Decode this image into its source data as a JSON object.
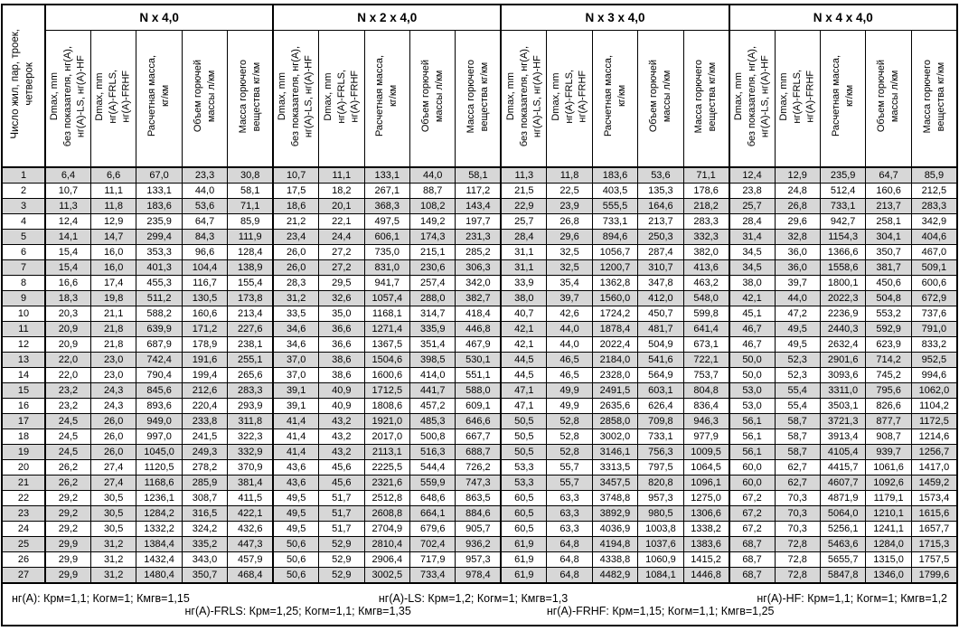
{
  "table": {
    "corner_header_lines": [
      "Число жил, пар, троек,",
      "четверок"
    ],
    "groups": [
      {
        "label": "N x 4,0"
      },
      {
        "label": "N x 2 x 4,0"
      },
      {
        "label": "N x 3 x 4,0"
      },
      {
        "label": "N x 4 x 4,0"
      }
    ],
    "subheaders": [
      {
        "key": "dmax-base",
        "lines": [
          "Dmax, mm",
          "без показателя, нг(А),",
          "нг(А)-LS, нг(А)-HF"
        ]
      },
      {
        "key": "dmax-fr",
        "lines": [
          "Dmax, mm",
          "нг(А)-FRLS,",
          "нг(А)-FRHF"
        ]
      },
      {
        "key": "calc-mass",
        "lines": [
          "Расчетная масса,",
          "кг/км"
        ]
      },
      {
        "key": "combustible-volume",
        "lines": [
          "Объем горючей",
          "массы л/км"
        ]
      },
      {
        "key": "combustible-mass",
        "lines": [
          "Масса горючего",
          "вещества кг/км"
        ]
      }
    ],
    "rows": [
      {
        "n": "1",
        "values": [
          "6,4",
          "6,6",
          "67,0",
          "23,3",
          "30,8",
          "10,7",
          "11,1",
          "133,1",
          "44,0",
          "58,1",
          "11,3",
          "11,8",
          "183,6",
          "53,6",
          "71,1",
          "12,4",
          "12,9",
          "235,9",
          "64,7",
          "85,9"
        ]
      },
      {
        "n": "2",
        "values": [
          "10,7",
          "11,1",
          "133,1",
          "44,0",
          "58,1",
          "17,5",
          "18,2",
          "267,1",
          "88,7",
          "117,2",
          "21,5",
          "22,5",
          "403,5",
          "135,3",
          "178,6",
          "23,8",
          "24,8",
          "512,4",
          "160,6",
          "212,5"
        ]
      },
      {
        "n": "3",
        "values": [
          "11,3",
          "11,8",
          "183,6",
          "53,6",
          "71,1",
          "18,6",
          "20,1",
          "368,3",
          "108,2",
          "143,4",
          "22,9",
          "23,9",
          "555,5",
          "164,6",
          "218,2",
          "25,7",
          "26,8",
          "733,1",
          "213,7",
          "283,3"
        ]
      },
      {
        "n": "4",
        "values": [
          "12,4",
          "12,9",
          "235,9",
          "64,7",
          "85,9",
          "21,2",
          "22,1",
          "497,5",
          "149,2",
          "197,7",
          "25,7",
          "26,8",
          "733,1",
          "213,7",
          "283,3",
          "28,4",
          "29,6",
          "942,7",
          "258,1",
          "342,9"
        ]
      },
      {
        "n": "5",
        "values": [
          "14,1",
          "14,7",
          "299,4",
          "84,3",
          "111,9",
          "23,4",
          "24,4",
          "606,1",
          "174,3",
          "231,3",
          "28,4",
          "29,6",
          "894,6",
          "250,3",
          "332,3",
          "31,4",
          "32,8",
          "1154,3",
          "304,1",
          "404,6"
        ]
      },
      {
        "n": "6",
        "values": [
          "15,4",
          "16,0",
          "353,3",
          "96,6",
          "128,4",
          "26,0",
          "27,2",
          "735,0",
          "215,1",
          "285,2",
          "31,1",
          "32,5",
          "1056,7",
          "287,4",
          "382,0",
          "34,5",
          "36,0",
          "1366,6",
          "350,7",
          "467,0"
        ]
      },
      {
        "n": "7",
        "values": [
          "15,4",
          "16,0",
          "401,3",
          "104,4",
          "138,9",
          "26,0",
          "27,2",
          "831,0",
          "230,6",
          "306,3",
          "31,1",
          "32,5",
          "1200,7",
          "310,7",
          "413,6",
          "34,5",
          "36,0",
          "1558,6",
          "381,7",
          "509,1"
        ]
      },
      {
        "n": "8",
        "values": [
          "16,6",
          "17,4",
          "455,3",
          "116,7",
          "155,4",
          "28,3",
          "29,5",
          "941,7",
          "257,4",
          "342,0",
          "33,9",
          "35,4",
          "1362,8",
          "347,8",
          "463,2",
          "38,0",
          "39,7",
          "1800,1",
          "450,6",
          "600,6"
        ]
      },
      {
        "n": "9",
        "values": [
          "18,3",
          "19,8",
          "511,2",
          "130,5",
          "173,8",
          "31,2",
          "32,6",
          "1057,4",
          "288,0",
          "382,7",
          "38,0",
          "39,7",
          "1560,0",
          "412,0",
          "548,0",
          "42,1",
          "44,0",
          "2022,3",
          "504,8",
          "672,9"
        ]
      },
      {
        "n": "10",
        "values": [
          "20,3",
          "21,1",
          "588,2",
          "160,6",
          "213,4",
          "33,5",
          "35,0",
          "1168,1",
          "314,7",
          "418,4",
          "40,7",
          "42,6",
          "1724,2",
          "450,7",
          "599,8",
          "45,1",
          "47,2",
          "2236,9",
          "553,2",
          "737,6"
        ]
      },
      {
        "n": "11",
        "values": [
          "20,9",
          "21,8",
          "639,9",
          "171,2",
          "227,6",
          "34,6",
          "36,6",
          "1271,4",
          "335,9",
          "446,8",
          "42,1",
          "44,0",
          "1878,4",
          "481,7",
          "641,4",
          "46,7",
          "49,5",
          "2440,3",
          "592,9",
          "791,0"
        ]
      },
      {
        "n": "12",
        "values": [
          "20,9",
          "21,8",
          "687,9",
          "178,9",
          "238,1",
          "34,6",
          "36,6",
          "1367,5",
          "351,4",
          "467,9",
          "42,1",
          "44,0",
          "2022,4",
          "504,9",
          "673,1",
          "46,7",
          "49,5",
          "2632,4",
          "623,9",
          "833,2"
        ]
      },
      {
        "n": "13",
        "values": [
          "22,0",
          "23,0",
          "742,4",
          "191,6",
          "255,1",
          "37,0",
          "38,6",
          "1504,6",
          "398,5",
          "530,1",
          "44,5",
          "46,5",
          "2184,0",
          "541,6",
          "722,1",
          "50,0",
          "52,3",
          "2901,6",
          "714,2",
          "952,5"
        ]
      },
      {
        "n": "14",
        "values": [
          "22,0",
          "23,0",
          "790,4",
          "199,4",
          "265,6",
          "37,0",
          "38,6",
          "1600,6",
          "414,0",
          "551,1",
          "44,5",
          "46,5",
          "2328,0",
          "564,9",
          "753,7",
          "50,0",
          "52,3",
          "3093,6",
          "745,2",
          "994,6"
        ]
      },
      {
        "n": "15",
        "values": [
          "23,2",
          "24,3",
          "845,6",
          "212,6",
          "283,3",
          "39,1",
          "40,9",
          "1712,5",
          "441,7",
          "588,0",
          "47,1",
          "49,9",
          "2491,5",
          "603,1",
          "804,8",
          "53,0",
          "55,4",
          "3311,0",
          "795,6",
          "1062,0"
        ]
      },
      {
        "n": "16",
        "values": [
          "23,2",
          "24,3",
          "893,6",
          "220,4",
          "293,9",
          "39,1",
          "40,9",
          "1808,6",
          "457,2",
          "609,1",
          "47,1",
          "49,9",
          "2635,6",
          "626,4",
          "836,4",
          "53,0",
          "55,4",
          "3503,1",
          "826,6",
          "1104,2"
        ]
      },
      {
        "n": "17",
        "values": [
          "24,5",
          "26,0",
          "949,0",
          "233,8",
          "311,8",
          "41,4",
          "43,2",
          "1921,0",
          "485,3",
          "646,6",
          "50,5",
          "52,8",
          "2858,0",
          "709,8",
          "946,3",
          "56,1",
          "58,7",
          "3721,3",
          "877,7",
          "1172,5"
        ]
      },
      {
        "n": "18",
        "values": [
          "24,5",
          "26,0",
          "997,0",
          "241,5",
          "322,3",
          "41,4",
          "43,2",
          "2017,0",
          "500,8",
          "667,7",
          "50,5",
          "52,8",
          "3002,0",
          "733,1",
          "977,9",
          "56,1",
          "58,7",
          "3913,4",
          "908,7",
          "1214,6"
        ]
      },
      {
        "n": "19",
        "values": [
          "24,5",
          "26,0",
          "1045,0",
          "249,3",
          "332,9",
          "41,4",
          "43,2",
          "2113,1",
          "516,3",
          "688,7",
          "50,5",
          "52,8",
          "3146,1",
          "756,3",
          "1009,5",
          "56,1",
          "58,7",
          "4105,4",
          "939,7",
          "1256,7"
        ]
      },
      {
        "n": "20",
        "values": [
          "26,2",
          "27,4",
          "1120,5",
          "278,2",
          "370,9",
          "43,6",
          "45,6",
          "2225,5",
          "544,4",
          "726,2",
          "53,3",
          "55,7",
          "3313,5",
          "797,5",
          "1064,5",
          "60,0",
          "62,7",
          "4415,7",
          "1061,6",
          "1417,0"
        ]
      },
      {
        "n": "21",
        "values": [
          "26,2",
          "27,4",
          "1168,6",
          "285,9",
          "381,4",
          "43,6",
          "45,6",
          "2321,6",
          "559,9",
          "747,3",
          "53,3",
          "55,7",
          "3457,5",
          "820,8",
          "1096,1",
          "60,0",
          "62,7",
          "4607,7",
          "1092,6",
          "1459,2"
        ]
      },
      {
        "n": "22",
        "values": [
          "29,2",
          "30,5",
          "1236,1",
          "308,7",
          "411,5",
          "49,5",
          "51,7",
          "2512,8",
          "648,6",
          "863,5",
          "60,5",
          "63,3",
          "3748,8",
          "957,3",
          "1275,0",
          "67,2",
          "70,3",
          "4871,9",
          "1179,1",
          "1573,4"
        ]
      },
      {
        "n": "23",
        "values": [
          "29,2",
          "30,5",
          "1284,2",
          "316,5",
          "422,1",
          "49,5",
          "51,7",
          "2608,8",
          "664,1",
          "884,6",
          "60,5",
          "63,3",
          "3892,9",
          "980,5",
          "1306,6",
          "67,2",
          "70,3",
          "5064,0",
          "1210,1",
          "1615,6"
        ]
      },
      {
        "n": "24",
        "values": [
          "29,2",
          "30,5",
          "1332,2",
          "324,2",
          "432,6",
          "49,5",
          "51,7",
          "2704,9",
          "679,6",
          "905,7",
          "60,5",
          "63,3",
          "4036,9",
          "1003,8",
          "1338,2",
          "67,2",
          "70,3",
          "5256,1",
          "1241,1",
          "1657,7"
        ]
      },
      {
        "n": "25",
        "values": [
          "29,9",
          "31,2",
          "1384,4",
          "335,2",
          "447,3",
          "50,6",
          "52,9",
          "2810,4",
          "702,4",
          "936,2",
          "61,9",
          "64,8",
          "4194,8",
          "1037,6",
          "1383,6",
          "68,7",
          "72,8",
          "5463,6",
          "1284,0",
          "1715,3"
        ]
      },
      {
        "n": "26",
        "values": [
          "29,9",
          "31,2",
          "1432,4",
          "343,0",
          "457,9",
          "50,6",
          "52,9",
          "2906,4",
          "717,9",
          "957,3",
          "61,9",
          "64,8",
          "4338,8",
          "1060,9",
          "1415,2",
          "68,7",
          "72,8",
          "5655,7",
          "1315,0",
          "1757,5"
        ]
      },
      {
        "n": "27",
        "values": [
          "29,9",
          "31,2",
          "1480,4",
          "350,7",
          "468,4",
          "50,6",
          "52,9",
          "3002,5",
          "733,4",
          "978,4",
          "61,9",
          "64,8",
          "4482,9",
          "1084,1",
          "1446,8",
          "68,7",
          "72,8",
          "5847,8",
          "1346,0",
          "1799,6"
        ]
      }
    ],
    "footnotes": {
      "line1": [
        "нг(А): Крм=1,1;  Когм=1;  Кмгв=1,15",
        "нг(А)-LS: Крм=1,2;  Когм=1;  Кмгв=1,3",
        "нг(А)-HF: Крм=1,1;  Когм=1;  Кмгв=1,2"
      ],
      "line2": [
        "нг(А)-FRLS: Крм=1,25;  Когм=1,1;  Кмгв=1,35",
        "нг(А)-FRHF: Крм=1,15;  Когм=1,1;  Кмгв=1,25"
      ]
    },
    "colors": {
      "shaded_row": "#d7d7d7",
      "border": "#000000",
      "background": "#ffffff"
    }
  }
}
